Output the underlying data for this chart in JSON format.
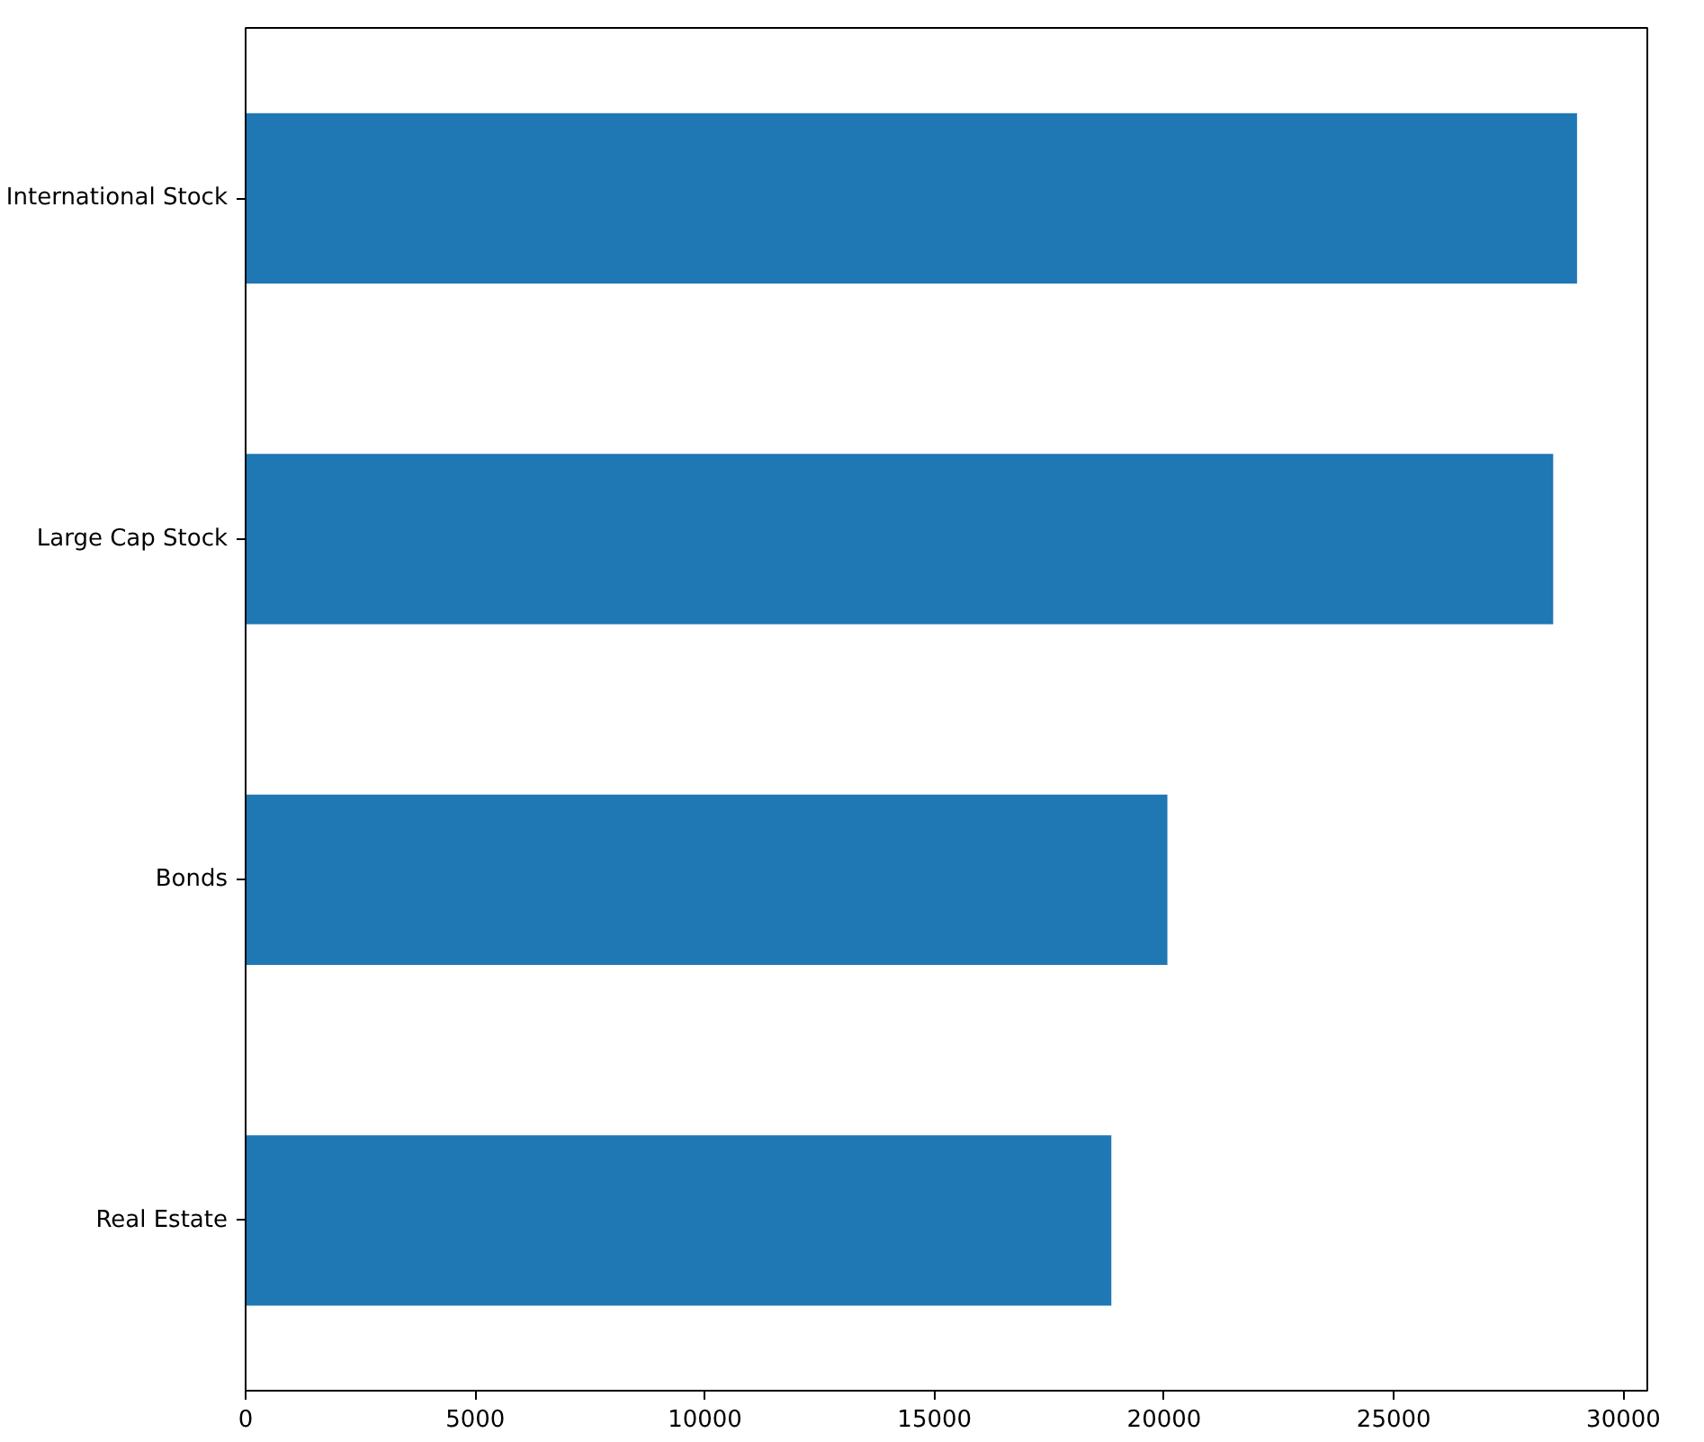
{
  "chart_data": {
    "type": "bar",
    "orientation": "horizontal",
    "categories": [
      "International Stock",
      "Large Cap Stock",
      "Bonds",
      "Real Estate"
    ],
    "values": [
      28990,
      28470,
      20070,
      18850
    ],
    "color": "#1f77b4",
    "xlim": [
      0,
      30520
    ],
    "xticks": [
      0,
      5000,
      10000,
      15000,
      20000,
      25000,
      30000
    ],
    "grid": false
  }
}
